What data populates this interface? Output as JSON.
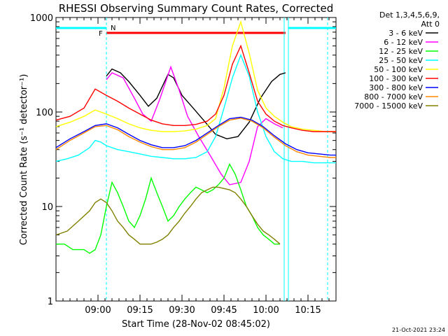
{
  "chart_data": {
    "type": "line",
    "title": "RHESSI Observing Summary Count Rates, Corrected",
    "xlabel": "Start Time (28-Nov-02 08:45:02)",
    "ylabel": "Corrected Count Rate (s⁻¹ detector⁻¹)",
    "yscale": "log",
    "ylim": [
      1,
      1000
    ],
    "xlim_minutes": [
      0,
      100
    ],
    "x_tick_labels": [
      "09:00",
      "09:15",
      "09:30",
      "09:45",
      "10:00",
      "10:15"
    ],
    "x_ticks_minutes": [
      15,
      30,
      45,
      60,
      75,
      90
    ],
    "y_tick_labels": [
      "1",
      "10",
      "100",
      "1000"
    ],
    "y_ticks": [
      1,
      10,
      100,
      1000
    ],
    "legend_title": [
      "Det 1,3,4,5,6,9,",
      "Att 0"
    ],
    "footer_date": "21-Oct-2021 23:24",
    "flags": {
      "F": "F",
      "N": "N"
    },
    "series": [
      {
        "name": "3 - 6 keV",
        "color": "#000000",
        "points": [
          [
            18,
            240
          ],
          [
            20,
            285
          ],
          [
            23,
            260
          ],
          [
            26,
            210
          ],
          [
            30,
            150
          ],
          [
            33,
            115
          ],
          [
            36,
            140
          ],
          [
            40,
            250
          ],
          [
            42,
            230
          ],
          [
            45,
            150
          ],
          [
            49,
            110
          ],
          [
            53,
            80
          ],
          [
            57,
            58
          ],
          [
            61,
            52
          ],
          [
            65,
            55
          ],
          [
            69,
            78
          ],
          [
            73,
            140
          ],
          [
            77,
            210
          ],
          [
            80,
            250
          ],
          [
            82,
            260
          ]
        ]
      },
      {
        "name": "6 - 12 keV",
        "color": "#ff00ff",
        "points": [
          [
            18,
            220
          ],
          [
            20,
            260
          ],
          [
            24,
            230
          ],
          [
            28,
            140
          ],
          [
            31,
            95
          ],
          [
            34,
            80
          ],
          [
            37,
            135
          ],
          [
            41,
            300
          ],
          [
            44,
            170
          ],
          [
            47,
            90
          ],
          [
            51,
            55
          ],
          [
            55,
            35
          ],
          [
            59,
            22
          ],
          [
            62,
            17
          ],
          [
            66,
            18
          ],
          [
            69,
            30
          ],
          [
            72,
            70
          ],
          [
            75,
            85
          ],
          [
            78,
            75
          ],
          [
            81,
            68
          ]
        ]
      },
      {
        "name": "12 - 25 keV",
        "color": "#00ff00",
        "points": [
          [
            0,
            4
          ],
          [
            3,
            4
          ],
          [
            6,
            3.5
          ],
          [
            10,
            3.5
          ],
          [
            12,
            3.2
          ],
          [
            14,
            3.5
          ],
          [
            16,
            5
          ],
          [
            18,
            10
          ],
          [
            20,
            18
          ],
          [
            22,
            14
          ],
          [
            24,
            10
          ],
          [
            26,
            7
          ],
          [
            28,
            6
          ],
          [
            30,
            8
          ],
          [
            32,
            12
          ],
          [
            34,
            20
          ],
          [
            36,
            14
          ],
          [
            38,
            10
          ],
          [
            40,
            7
          ],
          [
            42,
            8
          ],
          [
            44,
            10
          ],
          [
            46,
            12
          ],
          [
            48,
            14
          ],
          [
            50,
            16
          ],
          [
            52,
            15
          ],
          [
            54,
            14
          ],
          [
            56,
            15
          ],
          [
            58,
            17
          ],
          [
            60,
            20
          ],
          [
            62,
            28
          ],
          [
            64,
            22
          ],
          [
            66,
            15
          ],
          [
            68,
            10
          ],
          [
            70,
            8
          ],
          [
            72,
            6
          ],
          [
            74,
            5
          ],
          [
            76,
            4.5
          ],
          [
            78,
            4
          ],
          [
            80,
            4
          ]
        ]
      },
      {
        "name": "25 - 50 keV",
        "color": "#00ffff",
        "points": [
          [
            0,
            30
          ],
          [
            4,
            32
          ],
          [
            8,
            35
          ],
          [
            12,
            42
          ],
          [
            14,
            50
          ],
          [
            16,
            48
          ],
          [
            18,
            44
          ],
          [
            22,
            40
          ],
          [
            26,
            38
          ],
          [
            30,
            36
          ],
          [
            34,
            34
          ],
          [
            38,
            33
          ],
          [
            42,
            32
          ],
          [
            46,
            32
          ],
          [
            50,
            33
          ],
          [
            54,
            38
          ],
          [
            57,
            55
          ],
          [
            60,
            110
          ],
          [
            63,
            230
          ],
          [
            66,
            400
          ],
          [
            69,
            240
          ],
          [
            72,
            100
          ],
          [
            75,
            55
          ],
          [
            78,
            38
          ],
          [
            81,
            32
          ],
          [
            84,
            30
          ],
          [
            88,
            30
          ],
          [
            92,
            29
          ],
          [
            96,
            29
          ],
          [
            100,
            29
          ]
        ]
      },
      {
        "name": "50 - 100 keV",
        "color": "#ffff00",
        "points": [
          [
            0,
            70
          ],
          [
            5,
            78
          ],
          [
            10,
            90
          ],
          [
            14,
            105
          ],
          [
            18,
            95
          ],
          [
            22,
            85
          ],
          [
            26,
            75
          ],
          [
            30,
            68
          ],
          [
            34,
            64
          ],
          [
            38,
            62
          ],
          [
            42,
            62
          ],
          [
            46,
            63
          ],
          [
            50,
            66
          ],
          [
            54,
            72
          ],
          [
            57,
            85
          ],
          [
            60,
            180
          ],
          [
            63,
            500
          ],
          [
            66,
            900
          ],
          [
            69,
            420
          ],
          [
            72,
            170
          ],
          [
            75,
            110
          ],
          [
            78,
            90
          ],
          [
            81,
            78
          ],
          [
            84,
            70
          ],
          [
            88,
            66
          ],
          [
            92,
            64
          ],
          [
            96,
            62
          ],
          [
            100,
            62
          ]
        ]
      },
      {
        "name": "100 - 300 keV",
        "color": "#ff0000",
        "points": [
          [
            0,
            82
          ],
          [
            5,
            90
          ],
          [
            10,
            110
          ],
          [
            14,
            175
          ],
          [
            18,
            150
          ],
          [
            22,
            130
          ],
          [
            26,
            110
          ],
          [
            30,
            95
          ],
          [
            34,
            82
          ],
          [
            38,
            75
          ],
          [
            42,
            72
          ],
          [
            46,
            72
          ],
          [
            50,
            74
          ],
          [
            54,
            80
          ],
          [
            57,
            95
          ],
          [
            60,
            150
          ],
          [
            63,
            320
          ],
          [
            66,
            500
          ],
          [
            69,
            260
          ],
          [
            72,
            130
          ],
          [
            75,
            95
          ],
          [
            78,
            80
          ],
          [
            81,
            72
          ],
          [
            84,
            68
          ],
          [
            88,
            64
          ],
          [
            92,
            62
          ],
          [
            96,
            62
          ],
          [
            100,
            62
          ]
        ]
      },
      {
        "name": "300 - 800 keV",
        "color": "#0000ff",
        "points": [
          [
            0,
            42
          ],
          [
            5,
            52
          ],
          [
            10,
            62
          ],
          [
            14,
            72
          ],
          [
            18,
            75
          ],
          [
            22,
            68
          ],
          [
            26,
            58
          ],
          [
            30,
            50
          ],
          [
            34,
            45
          ],
          [
            38,
            42
          ],
          [
            42,
            42
          ],
          [
            46,
            44
          ],
          [
            50,
            50
          ],
          [
            54,
            60
          ],
          [
            58,
            72
          ],
          [
            62,
            85
          ],
          [
            66,
            88
          ],
          [
            70,
            82
          ],
          [
            74,
            70
          ],
          [
            78,
            56
          ],
          [
            82,
            46
          ],
          [
            86,
            40
          ],
          [
            90,
            37
          ],
          [
            94,
            36
          ],
          [
            98,
            35
          ],
          [
            100,
            35
          ]
        ]
      },
      {
        "name": "800 - 7000 keV",
        "color": "#ff8800",
        "points": [
          [
            0,
            40
          ],
          [
            5,
            50
          ],
          [
            10,
            60
          ],
          [
            14,
            70
          ],
          [
            18,
            72
          ],
          [
            22,
            65
          ],
          [
            26,
            55
          ],
          [
            30,
            48
          ],
          [
            34,
            43
          ],
          [
            38,
            40
          ],
          [
            42,
            40
          ],
          [
            46,
            42
          ],
          [
            50,
            48
          ],
          [
            54,
            58
          ],
          [
            58,
            70
          ],
          [
            62,
            82
          ],
          [
            66,
            86
          ],
          [
            70,
            80
          ],
          [
            74,
            68
          ],
          [
            78,
            54
          ],
          [
            82,
            44
          ],
          [
            86,
            38
          ],
          [
            90,
            35
          ],
          [
            94,
            34
          ],
          [
            98,
            33
          ],
          [
            100,
            33
          ]
        ]
      },
      {
        "name": "7000 - 15000 keV",
        "color": "#808000",
        "points": [
          [
            0,
            5
          ],
          [
            4,
            5.5
          ],
          [
            8,
            7
          ],
          [
            12,
            9
          ],
          [
            14,
            11
          ],
          [
            16,
            12
          ],
          [
            18,
            11
          ],
          [
            20,
            9
          ],
          [
            22,
            7
          ],
          [
            24,
            6
          ],
          [
            26,
            5
          ],
          [
            28,
            4.5
          ],
          [
            30,
            4
          ],
          [
            32,
            4
          ],
          [
            34,
            4
          ],
          [
            36,
            4.2
          ],
          [
            38,
            4.5
          ],
          [
            40,
            5
          ],
          [
            42,
            6
          ],
          [
            44,
            7
          ],
          [
            46,
            8.5
          ],
          [
            48,
            10
          ],
          [
            50,
            12
          ],
          [
            52,
            14
          ],
          [
            54,
            15
          ],
          [
            56,
            16
          ],
          [
            58,
            16
          ],
          [
            60,
            15.5
          ],
          [
            62,
            15
          ],
          [
            64,
            14
          ],
          [
            66,
            12
          ],
          [
            68,
            10
          ],
          [
            70,
            8
          ],
          [
            72,
            6.5
          ],
          [
            74,
            5.5
          ],
          [
            76,
            5
          ],
          [
            78,
            4.5
          ],
          [
            80,
            4
          ]
        ]
      }
    ]
  }
}
